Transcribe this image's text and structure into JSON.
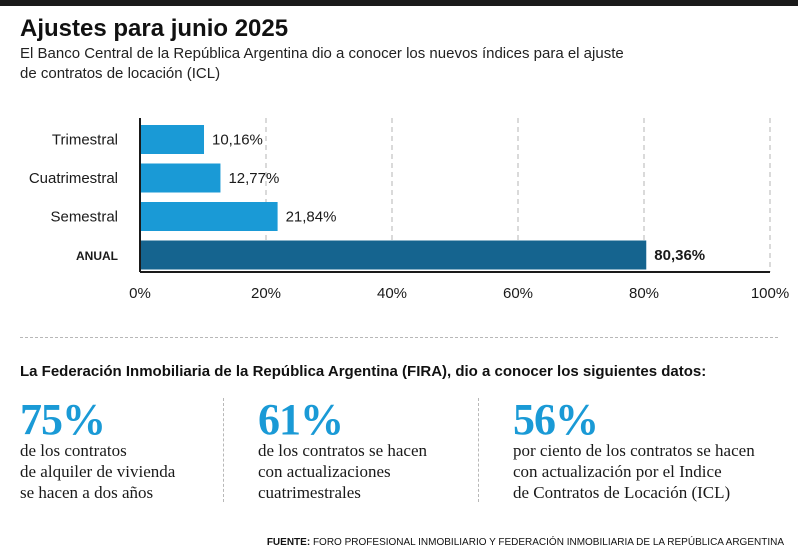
{
  "title": "Ajustes para junio 2025",
  "subtitle": "El Banco Central de la República Argentina dio a conocer los nuevos índices para el ajuste de contratos de locación (ICL)",
  "chart_data": {
    "type": "bar",
    "orientation": "horizontal",
    "categories": [
      "Trimestral",
      "Cuatrimestral",
      "Semestral",
      "ANUAL"
    ],
    "values": [
      10.16,
      12.77,
      21.84,
      80.36
    ],
    "value_labels": [
      "10,16%",
      "12,77%",
      "21,84%",
      "80,36%"
    ],
    "xlim": [
      0,
      100
    ],
    "xticks": [
      0,
      20,
      40,
      60,
      80,
      100
    ],
    "xtick_labels": [
      "0%",
      "20%",
      "40%",
      "60%",
      "80%",
      "100%"
    ],
    "grid": "vertical-dashed",
    "colors": {
      "regular": "#1a9ad6",
      "highlight": "#15648f"
    },
    "highlight_index": 3
  },
  "fira": {
    "heading": "La Federación Inmobiliaria de la República Argentina (FIRA), dio a conocer los siguientes datos:",
    "stats": [
      {
        "value": "75%",
        "text": "de los contratos\nde alquiler de vivienda\nse hacen a dos años"
      },
      {
        "value": "61%",
        "text": "de los contratos se hacen\ncon actualizaciones\ncuatrimestrales"
      },
      {
        "value": "56%",
        "text": "por ciento de los contratos se hacen\ncon actualización por el Indice\nde Contratos de Locación (ICL)"
      }
    ]
  },
  "source": {
    "label": "FUENTE:",
    "text": "FORO PROFESIONAL INMOBILIARIO Y FEDERACIÓN INMOBILIARIA DE LA REPÚBLICA ARGENTINA"
  }
}
